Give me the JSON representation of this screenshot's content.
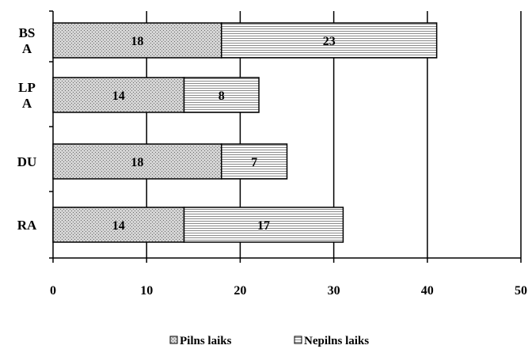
{
  "chart_data": {
    "type": "bar",
    "orientation": "horizontal",
    "stacked": true,
    "categories": [
      [
        "BS",
        "A"
      ],
      [
        "LP",
        "A"
      ],
      [
        "DU"
      ],
      [
        "RA"
      ]
    ],
    "series": [
      {
        "name": "Pilns laiks",
        "values": [
          18,
          14,
          18,
          14
        ],
        "color": "#d0d0d0",
        "pattern": "dots"
      },
      {
        "name": "Nepilns laiks",
        "values": [
          23,
          8,
          7,
          17
        ],
        "color": "#ffffff",
        "pattern": "horizontal-lines"
      }
    ],
    "xlim": [
      0,
      50
    ],
    "xticks": [
      0,
      10,
      20,
      30,
      40,
      50
    ],
    "grid": "vertical",
    "legend": "bottom",
    "data_labels": true
  }
}
